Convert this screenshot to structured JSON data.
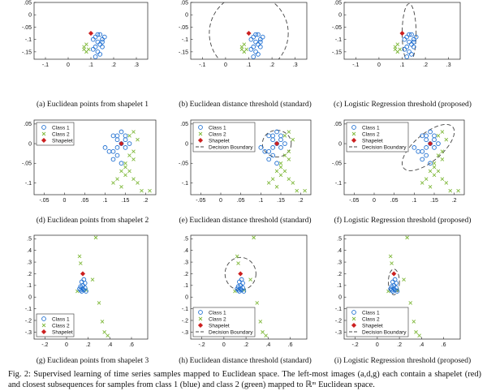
{
  "colors": {
    "class1": "#1f6fd1",
    "class2": "#7fb83a",
    "shapelet": "#cc1f1f",
    "boundary": "#444444"
  },
  "legend_labels": {
    "class1": "Class 1",
    "class2": "Class 2",
    "shapelet": "Shapelet",
    "boundary": "Decision Boundary"
  },
  "panels": [
    {
      "id": "a",
      "caption": "(a) Euclidean points from shapelet 1",
      "xlim": [
        -0.15,
        0.35
      ],
      "ylim": [
        -0.18,
        0.05
      ],
      "xticks": [
        -0.1,
        0,
        0.1,
        0.2,
        0.3
      ],
      "yticks": [
        0.05,
        0,
        -0.05,
        -0.1,
        -0.15
      ],
      "boundary": null,
      "legend": null,
      "class1": [
        [
          0.12,
          -0.09
        ],
        [
          0.14,
          -0.08
        ],
        [
          0.15,
          -0.1
        ],
        [
          0.13,
          -0.11
        ],
        [
          0.12,
          -0.13
        ],
        [
          0.14,
          -0.12
        ],
        [
          0.16,
          -0.09
        ],
        [
          0.11,
          -0.1
        ],
        [
          0.13,
          -0.15
        ],
        [
          0.12,
          -0.17
        ],
        [
          0.15,
          -0.13
        ],
        [
          0.14,
          -0.16
        ],
        [
          0.13,
          -0.08
        ],
        [
          0.15,
          -0.11
        ],
        [
          0.11,
          -0.14
        ]
      ],
      "class2": [
        [
          0.08,
          -0.12
        ],
        [
          0.07,
          -0.13
        ],
        [
          0.09,
          -0.14
        ],
        [
          0.08,
          -0.15
        ],
        [
          0.07,
          -0.14
        ]
      ],
      "shapelet": [
        0.1,
        -0.075
      ]
    },
    {
      "id": "b",
      "caption": "(b) Euclidean distance threshold (standard)",
      "xlim": [
        -0.15,
        0.35
      ],
      "ylim": [
        -0.18,
        0.05
      ],
      "xticks": [
        -0.1,
        0,
        0.1,
        0.2,
        0.3
      ],
      "yticks": [
        0.05,
        0,
        -0.05,
        -0.1,
        -0.15
      ],
      "boundary": {
        "cx": 0.1,
        "cy": -0.075,
        "rx": 0.17,
        "ry": 0.16,
        "angle": 0
      },
      "legend": null,
      "class1": [
        [
          0.12,
          -0.09
        ],
        [
          0.14,
          -0.08
        ],
        [
          0.15,
          -0.1
        ],
        [
          0.13,
          -0.11
        ],
        [
          0.12,
          -0.13
        ],
        [
          0.14,
          -0.12
        ],
        [
          0.16,
          -0.09
        ],
        [
          0.11,
          -0.1
        ],
        [
          0.13,
          -0.15
        ],
        [
          0.12,
          -0.17
        ],
        [
          0.15,
          -0.13
        ],
        [
          0.14,
          -0.16
        ],
        [
          0.13,
          -0.08
        ],
        [
          0.15,
          -0.11
        ],
        [
          0.11,
          -0.14
        ]
      ],
      "class2": [
        [
          0.08,
          -0.12
        ],
        [
          0.07,
          -0.13
        ],
        [
          0.09,
          -0.14
        ],
        [
          0.08,
          -0.15
        ],
        [
          0.07,
          -0.14
        ]
      ],
      "shapelet": [
        0.1,
        -0.075
      ]
    },
    {
      "id": "c",
      "caption": "(c) Logistic Regression threshold (proposed)",
      "xlim": [
        -0.15,
        0.35
      ],
      "ylim": [
        -0.18,
        0.05
      ],
      "xticks": [
        -0.1,
        0,
        0.1,
        0.2,
        0.3
      ],
      "yticks": [
        0.05,
        0,
        -0.05,
        -0.1,
        -0.15
      ],
      "boundary": {
        "cx": 0.13,
        "cy": -0.075,
        "rx": 0.03,
        "ry": 0.12,
        "angle": 0
      },
      "legend": null,
      "class1": [
        [
          0.12,
          -0.09
        ],
        [
          0.14,
          -0.08
        ],
        [
          0.15,
          -0.1
        ],
        [
          0.13,
          -0.11
        ],
        [
          0.12,
          -0.13
        ],
        [
          0.14,
          -0.12
        ],
        [
          0.16,
          -0.09
        ],
        [
          0.11,
          -0.1
        ],
        [
          0.13,
          -0.15
        ],
        [
          0.12,
          -0.17
        ],
        [
          0.15,
          -0.13
        ],
        [
          0.14,
          -0.16
        ],
        [
          0.13,
          -0.08
        ],
        [
          0.15,
          -0.11
        ],
        [
          0.11,
          -0.14
        ]
      ],
      "class2": [
        [
          0.08,
          -0.12
        ],
        [
          0.07,
          -0.13
        ],
        [
          0.09,
          -0.14
        ],
        [
          0.08,
          -0.15
        ],
        [
          0.07,
          -0.14
        ]
      ],
      "shapelet": [
        0.1,
        -0.075
      ]
    },
    {
      "id": "d",
      "caption": "(d) Euclidean points from shapelet 2",
      "xlim": [
        -0.075,
        0.225
      ],
      "ylim": [
        -0.13,
        0.06
      ],
      "xticks": [
        -0.05,
        0,
        0.05,
        0.1,
        0.15,
        0.2
      ],
      "yticks": [
        0.05,
        0,
        -0.05,
        -0.1
      ],
      "boundary": null,
      "legend": [
        "class1",
        "class2",
        "shapelet"
      ],
      "class1": [
        [
          0.12,
          0.02
        ],
        [
          0.13,
          0.01
        ],
        [
          0.14,
          0.0
        ],
        [
          0.15,
          0.01
        ],
        [
          0.13,
          -0.01
        ],
        [
          0.12,
          -0.02
        ],
        [
          0.14,
          0.03
        ],
        [
          0.15,
          -0.01
        ],
        [
          0.16,
          0.0
        ],
        [
          0.11,
          -0.02
        ],
        [
          0.13,
          -0.03
        ],
        [
          0.14,
          -0.05
        ],
        [
          0.12,
          -0.04
        ],
        [
          0.15,
          0.02
        ],
        [
          0.1,
          -0.01
        ],
        [
          0.13,
          0.02
        ]
      ],
      "class2": [
        [
          0.0,
          0.005
        ],
        [
          0.01,
          0.0
        ],
        [
          0.16,
          0.02
        ],
        [
          0.17,
          0.03
        ],
        [
          0.18,
          0.01
        ],
        [
          0.17,
          -0.02
        ],
        [
          0.16,
          -0.03
        ],
        [
          0.15,
          -0.05
        ],
        [
          0.14,
          -0.07
        ],
        [
          0.15,
          -0.08
        ],
        [
          0.16,
          -0.07
        ],
        [
          0.17,
          -0.09
        ],
        [
          0.18,
          -0.1
        ],
        [
          0.13,
          -0.09
        ],
        [
          0.12,
          -0.1
        ],
        [
          0.14,
          -0.11
        ],
        [
          0.19,
          -0.12
        ],
        [
          0.21,
          -0.12
        ],
        [
          0.17,
          -0.04
        ],
        [
          0.15,
          -0.06
        ]
      ],
      "shapelet": [
        0.14,
        0.0
      ]
    },
    {
      "id": "e",
      "caption": "(e) Euclidean distance threshold (standard)",
      "xlim": [
        -0.075,
        0.225
      ],
      "ylim": [
        -0.13,
        0.06
      ],
      "xticks": [
        -0.05,
        0,
        0.05,
        0.1,
        0.15,
        0.2
      ],
      "yticks": [
        0.05,
        0,
        -0.05,
        -0.1
      ],
      "boundary": {
        "cx": 0.14,
        "cy": 0.0,
        "rx": 0.036,
        "ry": 0.034,
        "angle": 0
      },
      "legend": [
        "class1",
        "class2",
        "shapelet",
        "boundary"
      ],
      "class1": [
        [
          0.12,
          0.02
        ],
        [
          0.13,
          0.01
        ],
        [
          0.14,
          0.0
        ],
        [
          0.15,
          0.01
        ],
        [
          0.13,
          -0.01
        ],
        [
          0.12,
          -0.02
        ],
        [
          0.14,
          0.03
        ],
        [
          0.15,
          -0.01
        ],
        [
          0.16,
          0.0
        ],
        [
          0.11,
          -0.02
        ],
        [
          0.13,
          -0.03
        ],
        [
          0.14,
          -0.05
        ],
        [
          0.12,
          -0.04
        ],
        [
          0.15,
          0.02
        ],
        [
          0.1,
          -0.01
        ],
        [
          0.13,
          0.02
        ]
      ],
      "class2": [
        [
          0.0,
          0.005
        ],
        [
          0.01,
          0.0
        ],
        [
          0.16,
          0.02
        ],
        [
          0.17,
          0.03
        ],
        [
          0.18,
          0.01
        ],
        [
          0.17,
          -0.02
        ],
        [
          0.16,
          -0.03
        ],
        [
          0.15,
          -0.05
        ],
        [
          0.14,
          -0.07
        ],
        [
          0.15,
          -0.08
        ],
        [
          0.16,
          -0.07
        ],
        [
          0.17,
          -0.09
        ],
        [
          0.18,
          -0.1
        ],
        [
          0.13,
          -0.09
        ],
        [
          0.12,
          -0.1
        ],
        [
          0.14,
          -0.11
        ],
        [
          0.19,
          -0.12
        ],
        [
          0.21,
          -0.12
        ],
        [
          0.17,
          -0.04
        ],
        [
          0.15,
          -0.06
        ]
      ],
      "shapelet": [
        0.14,
        0.0
      ]
    },
    {
      "id": "f",
      "caption": "(f) Logistic Regression threshold (proposed)",
      "xlim": [
        -0.075,
        0.225
      ],
      "ylim": [
        -0.13,
        0.06
      ],
      "xticks": [
        -0.05,
        0,
        0.05,
        0.1,
        0.15,
        0.2
      ],
      "yticks": [
        0.05,
        0,
        -0.05,
        -0.1
      ],
      "boundary": {
        "cx": 0.135,
        "cy": -0.01,
        "rx": 0.08,
        "ry": 0.035,
        "angle": -40
      },
      "legend": [
        "class1",
        "class2",
        "shapelet",
        "boundary"
      ],
      "class1": [
        [
          0.12,
          0.02
        ],
        [
          0.13,
          0.01
        ],
        [
          0.14,
          0.0
        ],
        [
          0.15,
          0.01
        ],
        [
          0.13,
          -0.01
        ],
        [
          0.12,
          -0.02
        ],
        [
          0.14,
          0.03
        ],
        [
          0.15,
          -0.01
        ],
        [
          0.16,
          0.0
        ],
        [
          0.11,
          -0.02
        ],
        [
          0.13,
          -0.03
        ],
        [
          0.14,
          -0.05
        ],
        [
          0.12,
          -0.04
        ],
        [
          0.15,
          0.02
        ],
        [
          0.1,
          -0.01
        ],
        [
          0.13,
          0.02
        ]
      ],
      "class2": [
        [
          0.0,
          0.005
        ],
        [
          0.01,
          0.0
        ],
        [
          0.16,
          0.02
        ],
        [
          0.17,
          0.03
        ],
        [
          0.18,
          0.01
        ],
        [
          0.17,
          -0.02
        ],
        [
          0.16,
          -0.03
        ],
        [
          0.15,
          -0.05
        ],
        [
          0.14,
          -0.07
        ],
        [
          0.15,
          -0.08
        ],
        [
          0.16,
          -0.07
        ],
        [
          0.17,
          -0.09
        ],
        [
          0.18,
          -0.1
        ],
        [
          0.13,
          -0.09
        ],
        [
          0.12,
          -0.1
        ],
        [
          0.14,
          -0.11
        ],
        [
          0.19,
          -0.12
        ],
        [
          0.21,
          -0.12
        ],
        [
          0.17,
          -0.04
        ],
        [
          0.15,
          -0.06
        ]
      ],
      "shapelet": [
        0.14,
        0.0
      ]
    },
    {
      "id": "g",
      "caption": "(g) Euclidean points from shapelet 3",
      "xlim": [
        -0.3,
        0.75
      ],
      "ylim": [
        -0.36,
        0.53
      ],
      "xticks": [
        -0.2,
        0,
        0.2,
        0.4,
        0.6
      ],
      "yticks": [
        0.5,
        0.4,
        0.3,
        0.2,
        0.1,
        0,
        -0.1,
        -0.2,
        -0.3
      ],
      "boundary": null,
      "legend": [
        "class1",
        "class2",
        "shapelet"
      ],
      "class1": [
        [
          0.15,
          0.1
        ],
        [
          0.17,
          0.08
        ],
        [
          0.16,
          0.06
        ],
        [
          0.14,
          0.05
        ],
        [
          0.18,
          0.05
        ],
        [
          0.13,
          0.09
        ],
        [
          0.12,
          0.07
        ],
        [
          0.16,
          0.15
        ],
        [
          0.14,
          0.13
        ],
        [
          0.17,
          0.12
        ],
        [
          0.15,
          0.07
        ],
        [
          0.13,
          0.06
        ]
      ],
      "class2": [
        [
          0.27,
          0.51
        ],
        [
          0.12,
          0.35
        ],
        [
          0.13,
          0.29
        ],
        [
          0.24,
          0.15
        ],
        [
          0.3,
          -0.05
        ],
        [
          0.33,
          -0.21
        ],
        [
          0.35,
          -0.3
        ],
        [
          0.38,
          -0.33
        ],
        [
          0.1,
          0.05
        ],
        [
          0.18,
          0.06
        ]
      ],
      "shapelet": [
        0.15,
        0.2
      ]
    },
    {
      "id": "h",
      "caption": "(h) Euclidean distance threshold (standard)",
      "xlim": [
        -0.3,
        0.75
      ],
      "ylim": [
        -0.36,
        0.53
      ],
      "xticks": [
        -0.2,
        0,
        0.2,
        0.4,
        0.6
      ],
      "yticks": [
        0.5,
        0.4,
        0.3,
        0.2,
        0.1,
        0,
        -0.1,
        -0.2,
        -0.3
      ],
      "boundary": {
        "cx": 0.15,
        "cy": 0.2,
        "rx": 0.14,
        "ry": 0.14,
        "angle": 0
      },
      "legend": [
        "class1",
        "class2",
        "shapelet",
        "boundary"
      ],
      "class1": [
        [
          0.15,
          0.1
        ],
        [
          0.17,
          0.08
        ],
        [
          0.16,
          0.06
        ],
        [
          0.14,
          0.05
        ],
        [
          0.18,
          0.05
        ],
        [
          0.13,
          0.09
        ],
        [
          0.12,
          0.07
        ],
        [
          0.16,
          0.15
        ],
        [
          0.14,
          0.13
        ],
        [
          0.17,
          0.12
        ],
        [
          0.15,
          0.07
        ],
        [
          0.13,
          0.06
        ]
      ],
      "class2": [
        [
          0.27,
          0.51
        ],
        [
          0.12,
          0.35
        ],
        [
          0.13,
          0.29
        ],
        [
          0.24,
          0.15
        ],
        [
          0.3,
          -0.05
        ],
        [
          0.33,
          -0.21
        ],
        [
          0.35,
          -0.3
        ],
        [
          0.38,
          -0.33
        ],
        [
          0.1,
          0.05
        ],
        [
          0.18,
          0.06
        ]
      ],
      "shapelet": [
        0.15,
        0.2
      ]
    },
    {
      "id": "i",
      "caption": "(i) Logistic Regression threshold (proposed)",
      "xlim": [
        -0.3,
        0.75
      ],
      "ylim": [
        -0.36,
        0.53
      ],
      "xticks": [
        -0.2,
        0,
        0.2,
        0.4,
        0.6
      ],
      "yticks": [
        0.5,
        0.4,
        0.3,
        0.2,
        0.1,
        0,
        -0.1,
        -0.2,
        -0.3
      ],
      "boundary": {
        "cx": 0.15,
        "cy": 0.13,
        "rx": 0.05,
        "ry": 0.11,
        "angle": 0
      },
      "legend": [
        "class1",
        "class2",
        "shapelet",
        "boundary"
      ],
      "class1": [
        [
          0.15,
          0.1
        ],
        [
          0.17,
          0.08
        ],
        [
          0.16,
          0.06
        ],
        [
          0.14,
          0.05
        ],
        [
          0.18,
          0.05
        ],
        [
          0.13,
          0.09
        ],
        [
          0.12,
          0.07
        ],
        [
          0.16,
          0.15
        ],
        [
          0.14,
          0.13
        ],
        [
          0.17,
          0.12
        ],
        [
          0.15,
          0.07
        ],
        [
          0.13,
          0.06
        ]
      ],
      "class2": [
        [
          0.27,
          0.51
        ],
        [
          0.12,
          0.35
        ],
        [
          0.13,
          0.29
        ],
        [
          0.24,
          0.15
        ],
        [
          0.3,
          -0.05
        ],
        [
          0.33,
          -0.21
        ],
        [
          0.35,
          -0.3
        ],
        [
          0.38,
          -0.33
        ],
        [
          0.1,
          0.05
        ],
        [
          0.18,
          0.06
        ]
      ],
      "shapelet": [
        0.15,
        0.2
      ]
    }
  ],
  "figure_caption": "Fig. 2: Supervised learning of time series samples mapped to Euclidean space. The left-most images (a,d,g) each contain a shapelet (red) and closest subsequences for samples from class 1 (blue) and class 2 (green) mapped to ℝᵐ Euclidean space."
}
